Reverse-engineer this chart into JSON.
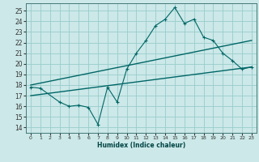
{
  "xlabel": "Humidex (Indice chaleur)",
  "bg_color": "#cce8e8",
  "grid_color": "#99cccc",
  "line_color": "#006666",
  "xlim": [
    -0.5,
    23.5
  ],
  "ylim": [
    13.5,
    25.7
  ],
  "xticks": [
    0,
    1,
    2,
    3,
    4,
    5,
    6,
    7,
    8,
    9,
    10,
    11,
    12,
    13,
    14,
    15,
    16,
    17,
    18,
    19,
    20,
    21,
    22,
    23
  ],
  "yticks": [
    14,
    15,
    16,
    17,
    18,
    19,
    20,
    21,
    22,
    23,
    24,
    25
  ],
  "main_line": {
    "x": [
      0,
      1,
      3,
      4,
      5,
      6,
      7,
      8,
      9,
      10,
      11,
      12,
      13,
      14,
      15,
      16,
      17,
      18,
      19,
      20,
      21,
      22,
      23
    ],
    "y": [
      17.8,
      17.7,
      16.4,
      16.0,
      16.1,
      15.9,
      14.3,
      17.8,
      16.4,
      19.5,
      21.0,
      22.2,
      23.6,
      24.2,
      25.3,
      23.8,
      24.2,
      22.5,
      22.2,
      21.0,
      20.3,
      19.5,
      19.7
    ]
  },
  "trend_line1": {
    "x": [
      0,
      23
    ],
    "y": [
      18.0,
      22.2
    ]
  },
  "trend_line2": {
    "x": [
      0,
      23
    ],
    "y": [
      17.0,
      19.7
    ]
  }
}
